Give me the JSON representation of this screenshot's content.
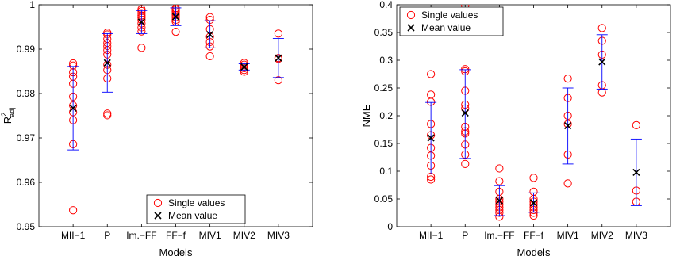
{
  "chart_data": [
    {
      "type": "scatter",
      "title": "",
      "xlabel": "Models",
      "ylabel_main": "R",
      "ylabel_sup": "2",
      "ylabel_sub": "adj",
      "categories": [
        "MII−1",
        "P",
        "Im.−FF",
        "FF−f",
        "MIV1",
        "MIV2",
        "MIV3"
      ],
      "ylim": [
        0.95,
        1.0
      ],
      "yticks": [
        0.95,
        0.96,
        0.97,
        0.98,
        0.99,
        1.0
      ],
      "ytick_labels": [
        "0.95",
        "0.96",
        "0.97",
        "0.98",
        "0.99",
        "1"
      ],
      "grid": false,
      "legend_position": "bottom-center",
      "series": [
        {
          "name": "Single values",
          "marker": "circle",
          "color": "#ff0000",
          "values": [
            [
              0.9868,
              0.9863,
              0.9848,
              0.9838,
              0.9822,
              0.9793,
              0.9773,
              0.9758,
              0.974,
              0.9686,
              0.9537
            ],
            [
              0.9937,
              0.9933,
              0.9923,
              0.9914,
              0.9907,
              0.9898,
              0.9888,
              0.9865,
              0.9853,
              0.9834,
              0.9755,
              0.9751
            ],
            [
              0.999,
              0.9986,
              0.9981,
              0.9976,
              0.9971,
              0.9966,
              0.9958,
              0.9949,
              0.994,
              0.9903
            ],
            [
              0.9992,
              0.9989,
              0.9985,
              0.9981,
              0.9977,
              0.9972,
              0.9966,
              0.9962,
              0.9939
            ],
            [
              0.9972,
              0.9966,
              0.9945,
              0.9928,
              0.9916,
              0.9906,
              0.9884
            ],
            [
              0.9869,
              0.9865,
              0.9861,
              0.9857,
              0.9853,
              0.9849
            ],
            [
              0.9935,
              0.988,
              0.9878,
              0.983
            ]
          ]
        },
        {
          "name": "Mean value",
          "marker": "x",
          "color": "#000000",
          "values": [
            0.9767,
            0.9869,
            0.9961,
            0.9973,
            0.9933,
            0.986,
            0.988
          ],
          "err_low": [
            0.9673,
            0.9803,
            0.9935,
            0.9953,
            0.9903,
            0.9853,
            0.9836
          ],
          "err_high": [
            0.9861,
            0.9935,
            0.9987,
            0.9993,
            0.9964,
            0.9867,
            0.9924
          ]
        }
      ]
    },
    {
      "type": "scatter",
      "title": "",
      "xlabel": "Models",
      "ylabel": "NME",
      "categories": [
        "MII−1",
        "P",
        "Im.−FF",
        "FF−f",
        "MIV1",
        "MIV2",
        "MIV3"
      ],
      "ylim": [
        0,
        0.4
      ],
      "yticks": [
        0,
        0.05,
        0.1,
        0.15,
        0.2,
        0.25,
        0.3,
        0.35,
        0.4
      ],
      "ytick_labels": [
        "0",
        "0.05",
        "0.1",
        "0.15",
        "0.2",
        "0.25",
        "0.3",
        "0.35",
        "0.4"
      ],
      "grid": false,
      "legend_position": "top-left",
      "series": [
        {
          "name": "Single values",
          "marker": "circle",
          "color": "#ff0000",
          "values": [
            [
              0.275,
              0.238,
              0.225,
              0.185,
              0.165,
              0.142,
              0.128,
              0.11,
              0.09,
              0.085
            ],
            [
              0.398,
              0.284,
              0.28,
              0.245,
              0.22,
              0.213,
              0.18,
              0.172,
              0.168,
              0.148,
              0.13,
              0.113
            ],
            [
              0.105,
              0.082,
              0.063,
              0.05,
              0.045,
              0.04,
              0.035,
              0.03,
              0.025,
              0.018
            ],
            [
              0.088,
              0.063,
              0.05,
              0.045,
              0.04,
              0.035,
              0.03,
              0.025,
              0.02
            ],
            [
              0.267,
              0.232,
              0.2,
              0.185,
              0.13,
              0.078
            ],
            [
              0.358,
              0.335,
              0.31,
              0.255,
              0.242
            ],
            [
              0.183,
              0.065,
              0.045
            ]
          ]
        },
        {
          "name": "Mean value",
          "marker": "x",
          "color": "#000000",
          "values": [
            0.16,
            0.205,
            0.047,
            0.043,
            0.182,
            0.297,
            0.098
          ],
          "err_low": [
            0.095,
            0.123,
            0.02,
            0.026,
            0.113,
            0.248,
            0.038
          ],
          "err_high": [
            0.224,
            0.283,
            0.074,
            0.061,
            0.25,
            0.346,
            0.158
          ]
        }
      ]
    }
  ]
}
